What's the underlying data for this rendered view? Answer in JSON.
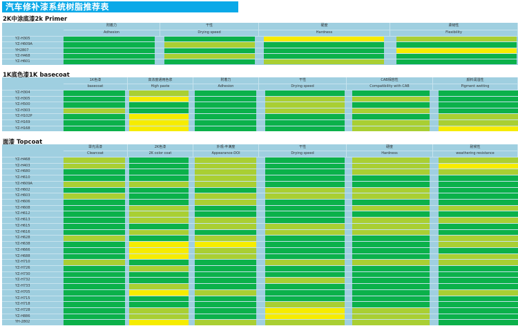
{
  "title": "汽车修补漆系统树脂推荐表",
  "colors": {
    "G": "#0bb14a",
    "L": "#a9cf33",
    "Y": "#f6ec00",
    "title_bar": "#0aa9e8",
    "table_bg": "#9fcfe0"
  },
  "sections": [
    {
      "title": "2K中涂底漆2k Primer",
      "columns": [
        {
          "cn": "附着力",
          "en": "Adhesion"
        },
        {
          "cn": "干性",
          "en": "Drying  speed"
        },
        {
          "cn": "硬度",
          "en": "Hardness"
        },
        {
          "cn": "柔韧性",
          "en": "Flexibility"
        }
      ],
      "rows": [
        {
          "name": "YZ-H305",
          "ratings": [
            "G",
            "G",
            "Y",
            "L"
          ]
        },
        {
          "name": "YZ-H609A",
          "ratings": [
            "G",
            "L",
            "G",
            "G"
          ]
        },
        {
          "name": "YH2807",
          "ratings": [
            "G",
            "G",
            "G",
            "Y"
          ]
        },
        {
          "name": "YZ-H468",
          "ratings": [
            "G",
            "L",
            "G",
            "G"
          ]
        },
        {
          "name": "YZ-H601",
          "ratings": [
            "G",
            "G",
            "L",
            "G"
          ]
        }
      ]
    },
    {
      "title": "1K底色漆1K  basecoat",
      "columns": [
        {
          "cn": "1K色漆",
          "en": "basecoat"
        },
        {
          "cn": "高浓度通用色浆",
          "en": "High  paste"
        },
        {
          "cn": "附着力",
          "en": "Adhesion"
        },
        {
          "cn": "干性",
          "en": "Drying  speed"
        },
        {
          "cn": "CAB相容性",
          "en": "Compatibility with  CAB"
        },
        {
          "cn": "颜料润湿性",
          "en": "Pigment wetting"
        }
      ],
      "rows": [
        {
          "name": "YZ-H304",
          "ratings": [
            "G",
            "L",
            "G",
            "G",
            "G",
            "G"
          ]
        },
        {
          "name": "YZ-H305",
          "ratings": [
            "G",
            "Y",
            "G",
            "L",
            "L",
            "G"
          ]
        },
        {
          "name": "YZ-H500",
          "ratings": [
            "G",
            "G",
            "G",
            "L",
            "G",
            "G"
          ]
        },
        {
          "name": "YZ-H303",
          "ratings": [
            "L",
            "G",
            "G",
            "L",
            "L",
            "G"
          ]
        },
        {
          "name": "YZ-H102P",
          "ratings": [
            "G",
            "Y",
            "G",
            "G",
            "G",
            "L"
          ]
        },
        {
          "name": "YZ-H169",
          "ratings": [
            "G",
            "Y",
            "G",
            "G",
            "L",
            "L"
          ]
        },
        {
          "name": "YZ-H168",
          "ratings": [
            "G",
            "Y",
            "G",
            "G",
            "L",
            "Y"
          ]
        }
      ]
    },
    {
      "title": "面漆 Topcoat",
      "columns": [
        {
          "cn": "罩光清漆",
          "en": "Clearcoat"
        },
        {
          "cn": "2K色漆",
          "en": "2K color coat"
        },
        {
          "cn": "外观-丰满度",
          "en": "Appearance-DOI"
        },
        {
          "cn": "干性",
          "en": "Drying  speed"
        },
        {
          "cn": "硬度",
          "en": "Hardness"
        },
        {
          "cn": "耐候性",
          "en": "weathering  resistance"
        }
      ],
      "rows": [
        {
          "name": "YZ-H468",
          "ratings": [
            "L",
            "G",
            "L",
            "G",
            "L",
            "L"
          ]
        },
        {
          "name": "YZ-H403",
          "ratings": [
            "L",
            "G",
            "L",
            "G",
            "L",
            "Y"
          ]
        },
        {
          "name": "YZ-H680",
          "ratings": [
            "G",
            "G",
            "L",
            "G",
            "L",
            "L"
          ]
        },
        {
          "name": "YZ-H610",
          "ratings": [
            "G",
            "G",
            "L",
            "G",
            "G",
            "G"
          ]
        },
        {
          "name": "YZ-H609A",
          "ratings": [
            "L",
            "L",
            "L",
            "G",
            "G",
            "G"
          ]
        },
        {
          "name": "YZ-H602",
          "ratings": [
            "G",
            "G",
            "G",
            "L",
            "L",
            "G"
          ]
        },
        {
          "name": "YZ-H603",
          "ratings": [
            "L",
            "G",
            "L",
            "L",
            "L",
            "G"
          ]
        },
        {
          "name": "YZ-H606",
          "ratings": [
            "G",
            "G",
            "L",
            "G",
            "G",
            "G"
          ]
        },
        {
          "name": "YZ-H608",
          "ratings": [
            "G",
            "L",
            "G",
            "G",
            "L",
            "L"
          ]
        },
        {
          "name": "YZ-H612",
          "ratings": [
            "G",
            "L",
            "G",
            "G",
            "G",
            "G"
          ]
        },
        {
          "name": "YZ-H613",
          "ratings": [
            "G",
            "L",
            "L",
            "G",
            "L",
            "L"
          ]
        },
        {
          "name": "YZ-H615",
          "ratings": [
            "G",
            "G",
            "L",
            "L",
            "L",
            "G"
          ]
        },
        {
          "name": "YZ-H616",
          "ratings": [
            "G",
            "L",
            "G",
            "L",
            "L",
            "G"
          ]
        },
        {
          "name": "YZ-H628",
          "ratings": [
            "L",
            "G",
            "L",
            "G",
            "G",
            "L"
          ]
        },
        {
          "name": "YZ-H638",
          "ratings": [
            "G",
            "Y",
            "Y",
            "G",
            "G",
            "L"
          ]
        },
        {
          "name": "YZ-H666",
          "ratings": [
            "G",
            "Y",
            "L",
            "G",
            "G",
            "G"
          ]
        },
        {
          "name": "YZ-H688",
          "ratings": [
            "G",
            "Y",
            "L",
            "G",
            "G",
            "L"
          ]
        },
        {
          "name": "YZ-H710",
          "ratings": [
            "L",
            "G",
            "G",
            "L",
            "L",
            "L"
          ]
        },
        {
          "name": "YZ-H726",
          "ratings": [
            "G",
            "L",
            "G",
            "G",
            "G",
            "G"
          ]
        },
        {
          "name": "YZ-H730",
          "ratings": [
            "G",
            "G",
            "G",
            "G",
            "G",
            "G"
          ]
        },
        {
          "name": "YZ-H732",
          "ratings": [
            "G",
            "G",
            "G",
            "L",
            "G",
            "G"
          ]
        },
        {
          "name": "YZ-H733",
          "ratings": [
            "G",
            "L",
            "G",
            "G",
            "G",
            "G"
          ]
        },
        {
          "name": "YZ-H705",
          "ratings": [
            "G",
            "Y",
            "L",
            "G",
            "G",
            "L"
          ]
        },
        {
          "name": "YZ-H715",
          "ratings": [
            "G",
            "G",
            "G",
            "G",
            "G",
            "G"
          ]
        },
        {
          "name": "YZ-H718",
          "ratings": [
            "G",
            "G",
            "G",
            "L",
            "G",
            "G"
          ]
        },
        {
          "name": "YZ-H728",
          "ratings": [
            "G",
            "L",
            "G",
            "Y",
            "L",
            "G"
          ]
        },
        {
          "name": "YZ-H886",
          "ratings": [
            "G",
            "L",
            "G",
            "Y",
            "L",
            "G"
          ]
        },
        {
          "name": "YH-2802",
          "ratings": [
            "G",
            "Y",
            "L",
            "L",
            "L",
            "G"
          ]
        }
      ]
    }
  ]
}
